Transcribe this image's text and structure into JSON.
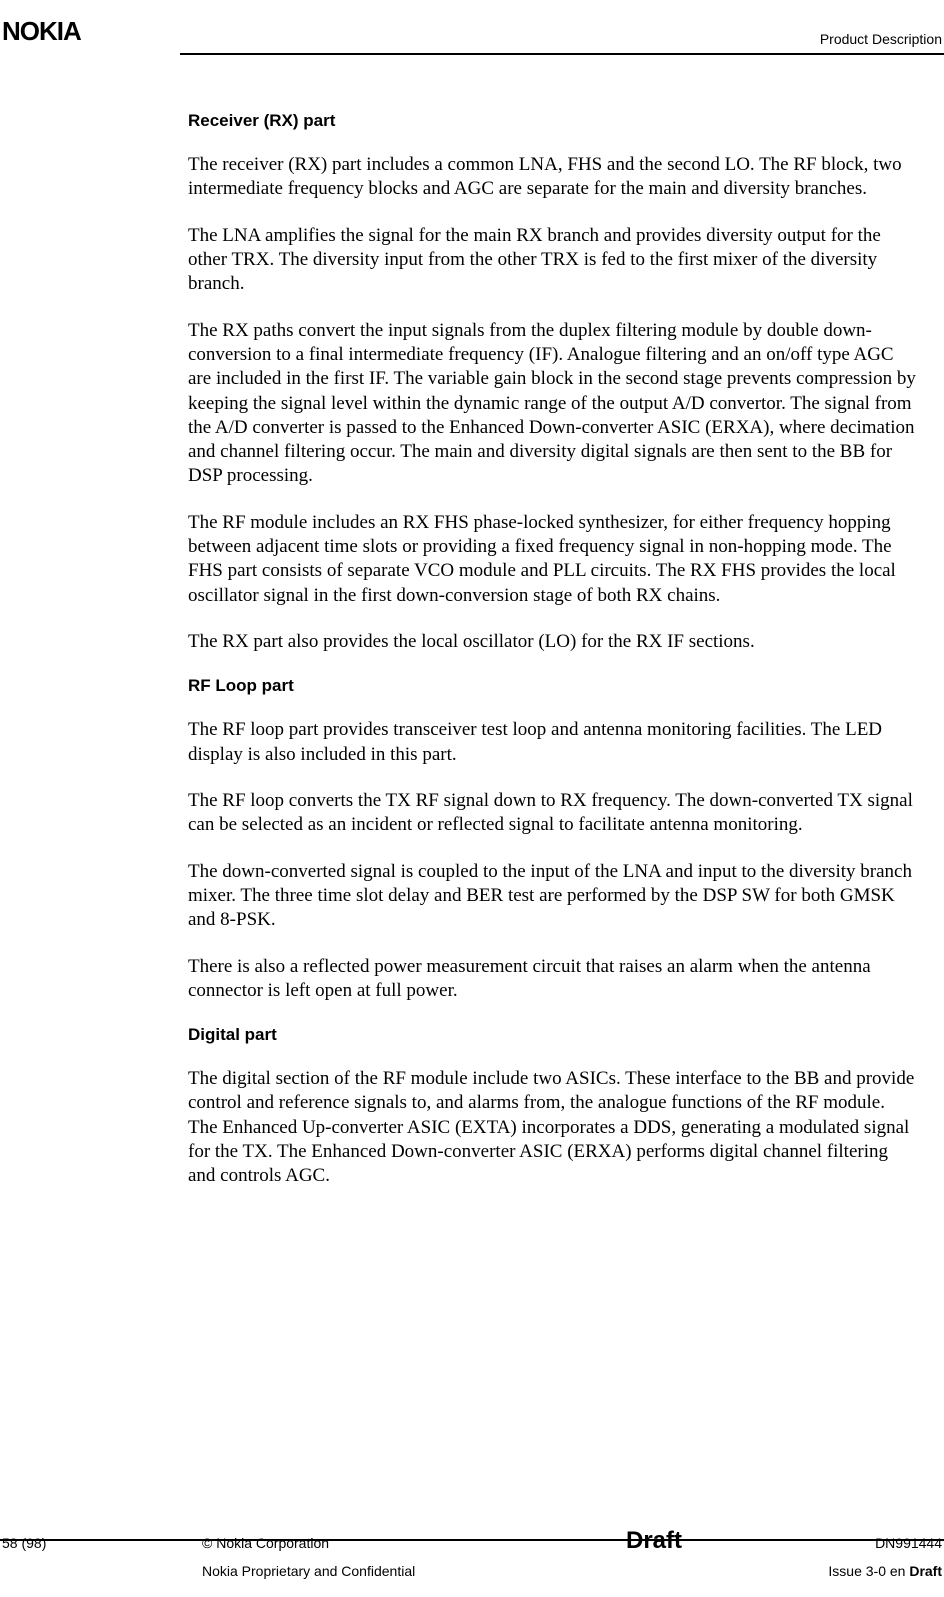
{
  "header": {
    "logo": "NOKIA",
    "right": "Product Description"
  },
  "sections": {
    "rx": {
      "heading": "Receiver (RX) part",
      "p1": "The receiver (RX) part includes a common LNA, FHS and the second LO. The RF block, two intermediate frequency blocks and AGC are separate for the main and diversity branches.",
      "p2": "The LNA amplifies the signal for the main RX branch and provides diversity output for the other TRX. The diversity input from the other TRX is fed to the first mixer of the diversity branch.",
      "p3": "The RX paths convert the input signals from the duplex filtering module by double down-conversion to a final intermediate frequency (IF). Analogue filtering and an on/off type AGC are included in the first IF. The variable gain block in the second stage prevents compression by keeping the signal level within the dynamic range of the output A/D convertor. The signal from the A/D converter is passed to the Enhanced Down-converter ASIC (ERXA), where decimation and channel filtering occur. The main and diversity digital signals are then sent to the BB for DSP processing.",
      "p4": "The RF module includes an RX FHS phase-locked synthesizer, for either frequency hopping between adjacent time slots or providing a fixed frequency signal in non-hopping mode. The FHS part consists of separate VCO module and PLL circuits. The RX FHS provides the local oscillator signal in the first down-conversion stage of both RX chains.",
      "p5": "The RX part also provides the local oscillator (LO) for the RX IF sections."
    },
    "rfloop": {
      "heading": "RF Loop part",
      "p1": "The RF loop part provides transceiver test loop and antenna monitoring facilities. The LED display is also included in this part.",
      "p2": "The RF loop converts the TX RF signal down to RX frequency. The down-converted TX signal can be selected as an incident or reflected signal to facilitate antenna monitoring.",
      "p3": "The down-converted signal is coupled to the input of the LNA and input to the diversity branch mixer. The three time slot delay and BER test are performed by the DSP SW for both GMSK and 8-PSK.",
      "p4": "There is also a reflected power measurement circuit that raises an alarm when the antenna connector is left open at full power."
    },
    "digital": {
      "heading": "Digital part",
      "p1": "The digital section of the RF module include two ASICs. These interface to the BB and provide control and reference signals to, and alarms from, the analogue functions of the RF module. The Enhanced Up-converter ASIC (EXTA) incorporates a DDS, generating a modulated signal for the TX. The Enhanced Down-converter ASIC (ERXA) performs digital channel filtering and controls AGC."
    }
  },
  "footer": {
    "page": "58 (98)",
    "copyright": "© Nokia Corporation",
    "confidential": "Nokia Proprietary and Confidential",
    "draft": "Draft",
    "docnum": "DN991444",
    "issue_prefix": "Issue 3-0 en ",
    "issue_bold": "Draft"
  }
}
